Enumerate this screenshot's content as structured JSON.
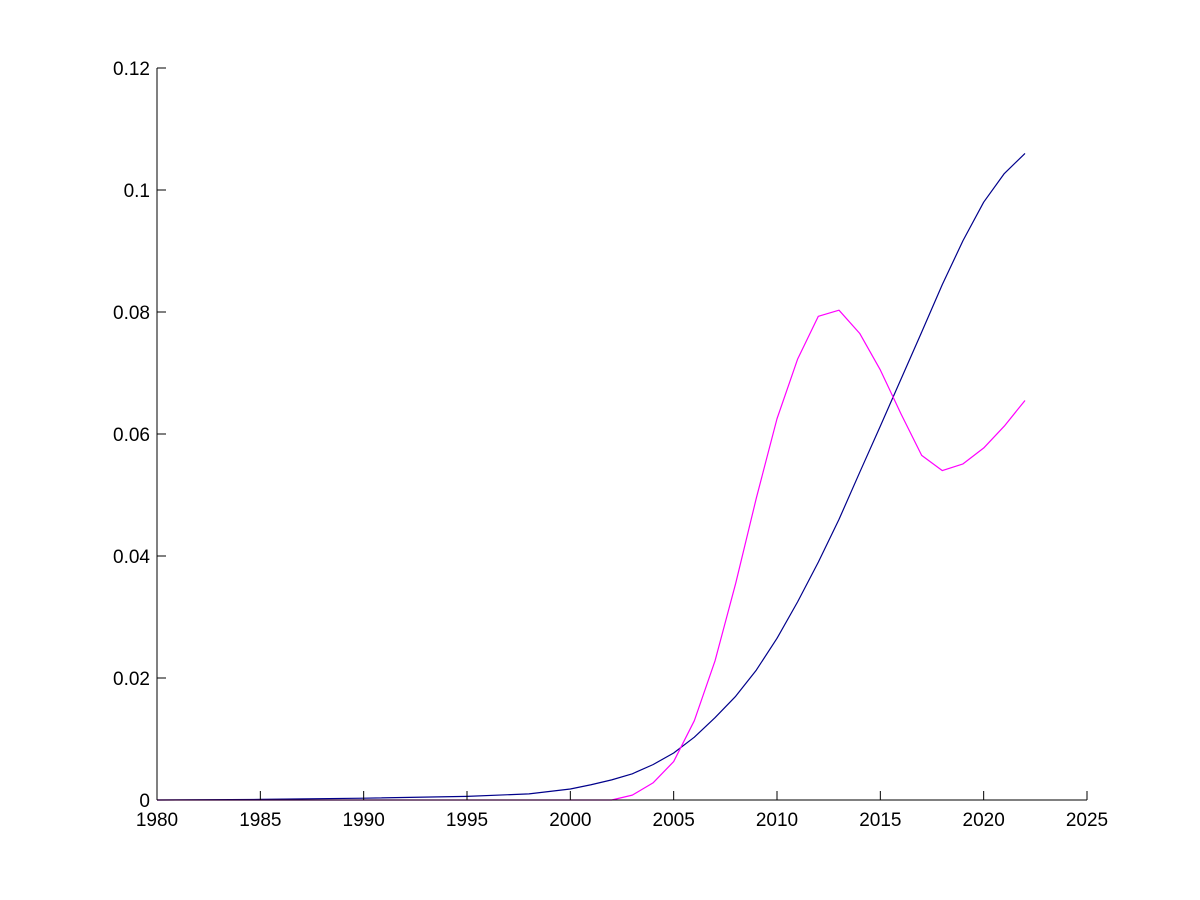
{
  "figure": {
    "background": "#ffffff",
    "axis_color": "#000000"
  },
  "chart_data": {
    "type": "line",
    "title": "",
    "xlabel": "",
    "ylabel": "",
    "xlim": [
      1980,
      2025
    ],
    "ylim": [
      0,
      0.12
    ],
    "grid": false,
    "legend": "none",
    "x_ticks": [
      1980,
      1985,
      1990,
      1995,
      2000,
      2005,
      2010,
      2015,
      2020,
      2025
    ],
    "x_tick_labels": [
      "1980",
      "1985",
      "1990",
      "1995",
      "2000",
      "2005",
      "2010",
      "2015",
      "2020",
      "2025"
    ],
    "y_ticks": [
      0,
      0.02,
      0.04,
      0.06,
      0.08,
      0.1,
      0.12
    ],
    "y_tick_labels": [
      "0",
      "0.02",
      "0.04",
      "0.06",
      "0.08",
      "0.1",
      "0.12"
    ],
    "series": [
      {
        "color": "#00008b",
        "x": [
          1980,
          1985,
          1990,
          1995,
          1998,
          2000,
          2001,
          2002,
          2003,
          2004,
          2005,
          2006,
          2007,
          2008,
          2009,
          2010,
          2011,
          2012,
          2013,
          2014,
          2015,
          2016,
          2017,
          2018,
          2019,
          2020,
          2021,
          2022
        ],
        "y": [
          0,
          0.0001,
          0.0003,
          0.0006,
          0.001,
          0.0018,
          0.0025,
          0.0033,
          0.0043,
          0.0058,
          0.0077,
          0.0103,
          0.0135,
          0.017,
          0.0213,
          0.0265,
          0.0325,
          0.039,
          0.046,
          0.0537,
          0.0613,
          0.069,
          0.0767,
          0.0845,
          0.0917,
          0.098,
          0.1027,
          0.106
        ]
      },
      {
        "color": "#ff00ff",
        "x": [
          1980,
          2000,
          2002,
          2003,
          2004,
          2005,
          2006,
          2007,
          2008,
          2009,
          2010,
          2011,
          2012,
          2013,
          2014,
          2015,
          2016,
          2017,
          2018,
          2019,
          2020,
          2021,
          2022
        ],
        "y": [
          0,
          0,
          0,
          0.0008,
          0.0028,
          0.0063,
          0.013,
          0.0228,
          0.0355,
          0.0495,
          0.0625,
          0.0723,
          0.0793,
          0.0803,
          0.0765,
          0.0705,
          0.0633,
          0.0565,
          0.054,
          0.0551,
          0.0577,
          0.0613,
          0.0655
        ]
      }
    ]
  }
}
